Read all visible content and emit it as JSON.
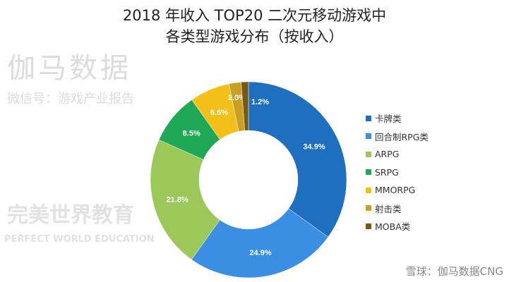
{
  "chart_data": {
    "type": "pie",
    "donut": true,
    "title": "2018 年收入 TOP20 二次元移动游戏中",
    "subtitle": "各类型游戏分布（按收入）",
    "categories": [
      "卡牌类",
      "回合制RPG类",
      "ARPG",
      "SRPG",
      "MMORPG",
      "射击类",
      "MOBA类"
    ],
    "values": [
      34.9,
      24.9,
      21.8,
      8.5,
      6.6,
      2.0,
      1.2
    ],
    "labels": [
      "34.9%",
      "24.9%",
      "21.8%",
      "8.5%",
      "6.6%",
      "2.0%",
      "1.2%"
    ],
    "colors": [
      "#1f6fc1",
      "#3a8fe3",
      "#9cc85a",
      "#1fa956",
      "#f3c01a",
      "#c9a024",
      "#735a17"
    ],
    "legend_position": "right"
  },
  "watermarks": {
    "top": "伽马数据",
    "wechat": "微信号：游戏产业报告",
    "brand": "完美世界教育",
    "brand_en": "PERFECT WORLD EDUCATION",
    "xueqiu": "雪球：伽马数据CNG"
  }
}
